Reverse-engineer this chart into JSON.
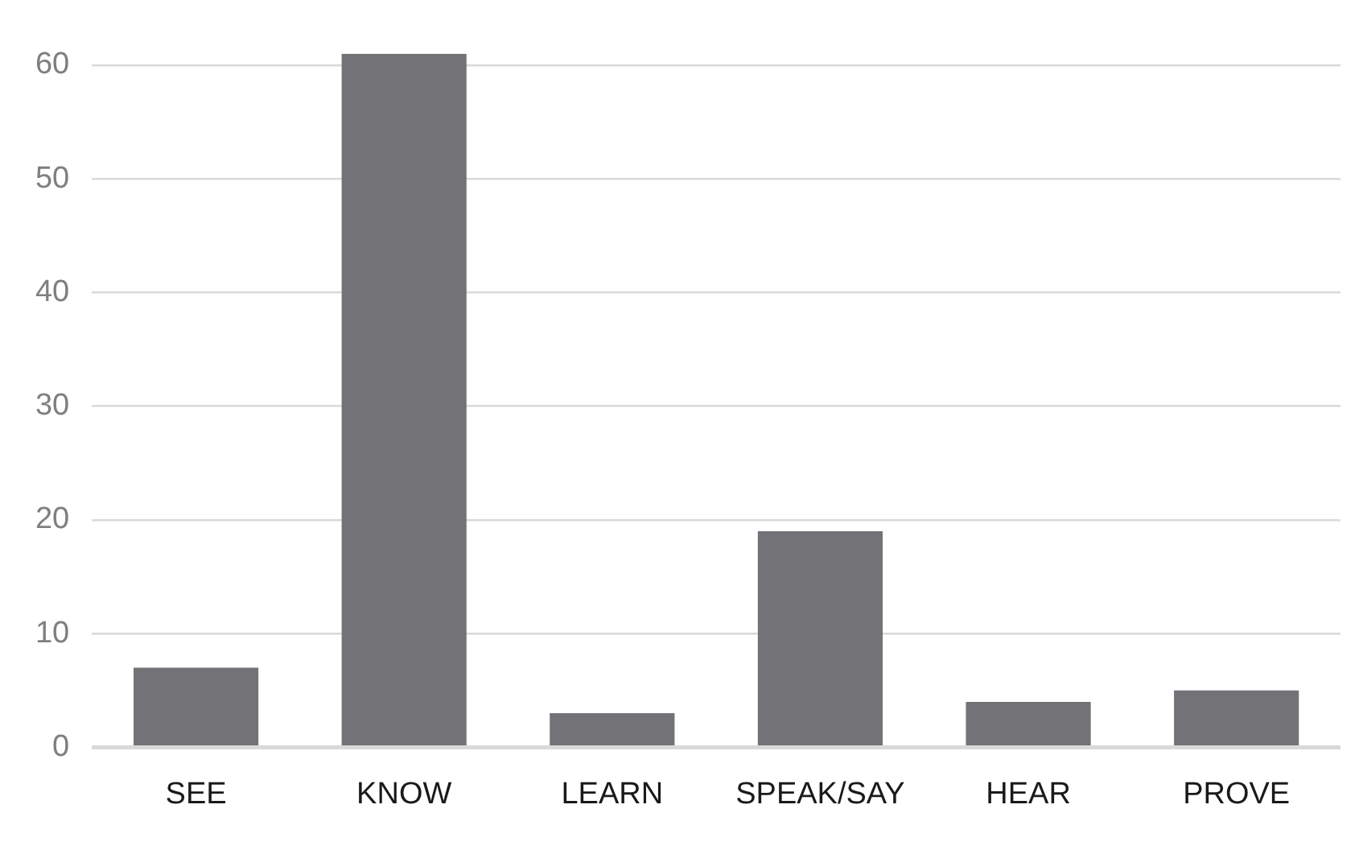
{
  "chart_data": {
    "type": "bar",
    "categories": [
      "SEE",
      "KNOW",
      "LEARN",
      "SPEAK/SAY",
      "HEAR",
      "PROVE"
    ],
    "values": [
      7,
      61,
      3,
      19,
      4,
      5
    ],
    "color": "#737277",
    "ylim": [
      0,
      61
    ],
    "yticks": [
      0,
      10,
      20,
      30,
      40,
      50,
      60
    ],
    "grid": "y",
    "legend": false
  }
}
